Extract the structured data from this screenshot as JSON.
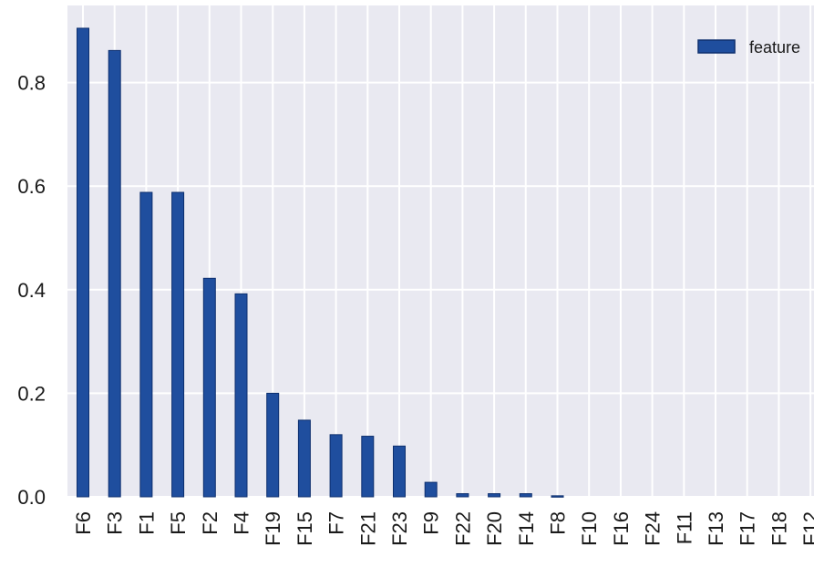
{
  "chart_data": {
    "type": "bar",
    "categories": [
      "F6",
      "F3",
      "F1",
      "F5",
      "F2",
      "F4",
      "F19",
      "F15",
      "F7",
      "F21",
      "F23",
      "F9",
      "F22",
      "F20",
      "F14",
      "F8",
      "F10",
      "F16",
      "F24",
      "F11",
      "F13",
      "F17",
      "F18",
      "F12"
    ],
    "series": [
      {
        "name": "feature",
        "values": [
          0.905,
          0.862,
          0.588,
          0.588,
          0.422,
          0.392,
          0.2,
          0.148,
          0.12,
          0.117,
          0.098,
          0.028,
          0.006,
          0.006,
          0.006,
          0.002,
          0.0,
          0.0,
          0.0,
          0.0,
          0.0,
          0.0,
          0.0,
          0.0
        ]
      }
    ],
    "title": "",
    "xlabel": "",
    "ylabel": "",
    "ylim": [
      0,
      0.95
    ],
    "yticks": [
      "0.0",
      "0.2",
      "0.4",
      "0.6",
      "0.8"
    ],
    "grid": true,
    "legend_position": "top-right",
    "colors": {
      "bar_fill": "#1f4e9e",
      "bar_edge": "#0d2f6e",
      "plot_background": "#e9e9f1",
      "grid": "#ffffff"
    }
  }
}
